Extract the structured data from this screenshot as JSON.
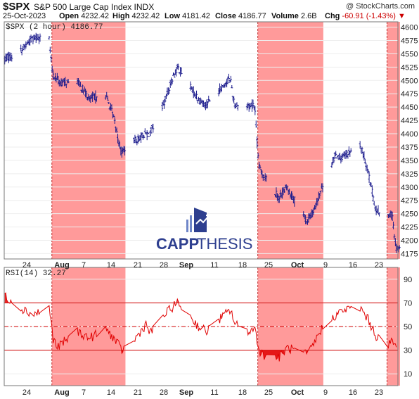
{
  "header": {
    "symbol": "$SPX",
    "name": "S&P 500 Large Cap Index  INDX",
    "date": "25-Oct-2023",
    "watermark": "@ StockCharts.com",
    "open_label": "Open",
    "open": "4232.42",
    "high_label": "High",
    "high": "4232.42",
    "low_label": "Low",
    "low": "4181.42",
    "close_label": "Close",
    "close": "4186.77",
    "volume_label": "Volume",
    "volume": "2.6B",
    "chg_label": "Chg",
    "chg": "-60.91 (-1.43%)"
  },
  "colors": {
    "bars": "#1a1a8c",
    "highlight": "#ff9a9a",
    "rsi_line": "#e00000",
    "axis": "#777777",
    "brand": "#2e3f8f"
  },
  "logo": {
    "text_a": "CAPP",
    "text_b": "THESIS",
    "icon": "bar-chart-trend-icon"
  },
  "chart_data": [
    {
      "type": "ohlc",
      "legend": "$SPX (2 hour) 4186.77",
      "x_labels": [
        "24",
        "Aug",
        "7",
        "14",
        "21",
        "28",
        "Sep",
        "11",
        "18",
        "25",
        "Oct",
        "9",
        "16",
        "23"
      ],
      "bold_labels": [
        "Aug",
        "Sep",
        "Oct"
      ],
      "ylim": [
        4165,
        4610
      ],
      "yticks": [
        4175,
        4200,
        4225,
        4250,
        4275,
        4300,
        4325,
        4350,
        4375,
        4400,
        4425,
        4450,
        4475,
        4500,
        4525,
        4550,
        4575,
        4600
      ],
      "highlighted_ranges": [
        [
          "Aug 1",
          "Aug 18"
        ],
        [
          "Sep 21",
          "Oct 6"
        ],
        [
          "Oct 23",
          "Oct 25"
        ]
      ],
      "anchors": [
        [
          "Jul 20",
          4540
        ],
        [
          "Jul 24",
          4555
        ],
        [
          "Jul 27",
          4580
        ],
        [
          "Jul 31",
          4585
        ],
        [
          "Aug 1",
          4510
        ],
        [
          "Aug 3",
          4495
        ],
        [
          "Aug 7",
          4500
        ],
        [
          "Aug 10",
          4465
        ],
        [
          "Aug 14",
          4475
        ],
        [
          "Aug 16",
          4435
        ],
        [
          "Aug 18",
          4365
        ],
        [
          "Aug 21",
          4385
        ],
        [
          "Aug 24",
          4400
        ],
        [
          "Aug 25",
          4400
        ],
        [
          "Aug 28",
          4445
        ],
        [
          "Aug 31",
          4510
        ],
        [
          "Sep 1",
          4525
        ],
        [
          "Sep 6",
          4465
        ],
        [
          "Sep 8",
          4455
        ],
        [
          "Sep 11",
          4480
        ],
        [
          "Sep 14",
          4505
        ],
        [
          "Sep 15",
          4455
        ],
        [
          "Sep 18",
          4450
        ],
        [
          "Sep 20",
          4455
        ],
        [
          "Sep 21",
          4340
        ],
        [
          "Sep 22",
          4325
        ],
        [
          "Sep 26",
          4280
        ],
        [
          "Sep 28",
          4300
        ],
        [
          "Oct 3",
          4235
        ],
        [
          "Oct 5",
          4260
        ],
        [
          "Oct 6",
          4285
        ],
        [
          "Oct 10",
          4360
        ],
        [
          "Oct 12",
          4355
        ],
        [
          "Oct 16",
          4380
        ],
        [
          "Oct 18",
          4335
        ],
        [
          "Oct 20",
          4255
        ],
        [
          "Oct 23",
          4245
        ],
        [
          "Oct 24",
          4250
        ],
        [
          "Oct 25",
          4187
        ]
      ]
    },
    {
      "type": "line",
      "legend": "RSI(14) 32.27",
      "ylim": [
        0,
        100
      ],
      "yticks": [
        10,
        30,
        50,
        70,
        90
      ],
      "reference_lines": [
        30,
        50,
        70
      ],
      "anchors": [
        [
          "Jul 20",
          76
        ],
        [
          "Jul 24",
          66
        ],
        [
          "Jul 27",
          60
        ],
        [
          "Jul 31",
          66
        ],
        [
          "Aug 1",
          40
        ],
        [
          "Aug 2",
          32
        ],
        [
          "Aug 4",
          38
        ],
        [
          "Aug 7",
          46
        ],
        [
          "Aug 10",
          40
        ],
        [
          "Aug 14",
          48
        ],
        [
          "Aug 16",
          40
        ],
        [
          "Aug 18",
          30
        ],
        [
          "Aug 21",
          38
        ],
        [
          "Aug 24",
          52
        ],
        [
          "Aug 25",
          44
        ],
        [
          "Aug 28",
          58
        ],
        [
          "Aug 31",
          68
        ],
        [
          "Sep 1",
          70
        ],
        [
          "Sep 6",
          50
        ],
        [
          "Sep 8",
          46
        ],
        [
          "Sep 11",
          56
        ],
        [
          "Sep 14",
          64
        ],
        [
          "Sep 15",
          52
        ],
        [
          "Sep 18",
          46
        ],
        [
          "Sep 20",
          48
        ],
        [
          "Sep 21",
          30
        ],
        [
          "Sep 22",
          26
        ],
        [
          "Sep 26",
          24
        ],
        [
          "Sep 28",
          32
        ],
        [
          "Oct 3",
          26
        ],
        [
          "Oct 5",
          38
        ],
        [
          "Oct 6",
          46
        ],
        [
          "Oct 10",
          60
        ],
        [
          "Oct 12",
          64
        ],
        [
          "Oct 16",
          66
        ],
        [
          "Oct 18",
          56
        ],
        [
          "Oct 20",
          42
        ],
        [
          "Oct 23",
          34
        ],
        [
          "Oct 24",
          38
        ],
        [
          "Oct 25",
          32
        ]
      ]
    }
  ]
}
